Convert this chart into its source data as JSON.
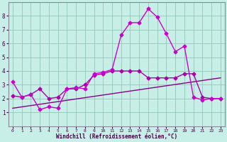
{
  "xlabel": "Windchill (Refroidissement éolien,°C)",
  "bg_color": "#c8eee8",
  "grid_color": "#99ccbb",
  "line_color1": "#cc00cc",
  "line_color2": "#aa00aa",
  "line_color3": "#880088",
  "xlim": [
    -0.5,
    23.5
  ],
  "ylim": [
    0,
    9
  ],
  "yticks": [
    1,
    2,
    3,
    4,
    5,
    6,
    7,
    8
  ],
  "xticks": [
    0,
    1,
    2,
    3,
    4,
    5,
    6,
    7,
    8,
    9,
    10,
    11,
    12,
    13,
    14,
    15,
    16,
    17,
    18,
    19,
    20,
    21,
    22,
    23
  ],
  "line1_x": [
    0,
    1,
    2,
    3,
    4,
    5,
    6,
    7,
    8,
    9,
    10,
    11,
    12,
    13,
    14,
    15,
    16,
    17,
    18,
    19,
    20,
    21,
    22,
    23
  ],
  "line1_y": [
    3.2,
    2.1,
    2.3,
    1.2,
    1.4,
    1.3,
    2.7,
    2.8,
    2.7,
    3.8,
    3.9,
    4.1,
    6.6,
    7.5,
    7.5,
    8.5,
    7.9,
    6.7,
    5.4,
    5.8,
    2.1,
    1.9,
    2.0,
    2.0
  ],
  "line2_x": [
    0,
    1,
    2,
    3,
    4,
    5,
    6,
    7,
    8,
    9,
    10,
    11,
    12,
    13,
    14,
    15,
    16,
    17,
    18,
    19,
    20,
    21,
    22,
    23
  ],
  "line2_y": [
    2.2,
    2.1,
    2.3,
    2.7,
    2.0,
    2.1,
    2.7,
    2.7,
    3.0,
    3.7,
    3.8,
    4.0,
    4.0,
    4.0,
    4.0,
    3.5,
    3.5,
    3.5,
    3.5,
    3.8,
    3.8,
    2.1,
    2.0,
    2.0
  ],
  "line3_x": [
    0,
    23
  ],
  "line3_y": [
    1.3,
    3.5
  ],
  "marker": "D",
  "markersize": 2.5,
  "linewidth": 1.0
}
